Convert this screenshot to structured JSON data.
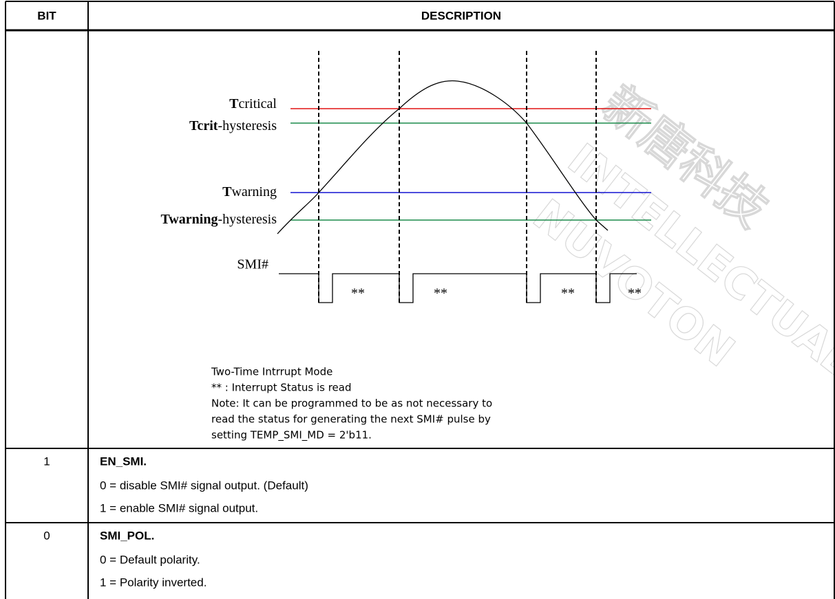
{
  "table": {
    "header": [
      "BIT",
      "DESCRIPTION"
    ],
    "diagram": {
      "levels": [
        {
          "bold": "T",
          "rest": "critical",
          "color": "#e01010"
        },
        {
          "bold": "Tcrit",
          "rest": "-hysteresis",
          "color": "#1a8a4a"
        },
        {
          "bold": "T",
          "rest": "warning",
          "color": "#1010d0"
        },
        {
          "bold": "Twarning",
          "rest": "-hysteresis",
          "color": "#1a8a4a"
        }
      ],
      "signal_label": "SMI#",
      "read_marks": [
        "**",
        "**",
        "**",
        "**"
      ],
      "caption": [
        "Two-Time Intrrupt Mode",
        "** : Interrupt Status is read",
        "Note: It can be programmed to be as not necessary to",
        "read the status for generating the next SMI# pulse by",
        "setting TEMP_SMI_MD = 2'b11."
      ]
    },
    "rows": [
      {
        "bit": "1",
        "name": "EN_SMI.",
        "lines": [
          "0 = disable SMI# signal output. (Default)",
          "1 = enable SMI# signal output."
        ]
      },
      {
        "bit": "0",
        "name": "SMI_POL.",
        "lines": [
          "0 = Default polarity.",
          "1 = Polarity inverted."
        ]
      }
    ]
  },
  "watermark": [
    "新唐科技",
    "INTELLECTUAL PROPERTY",
    "NUVOTON"
  ]
}
